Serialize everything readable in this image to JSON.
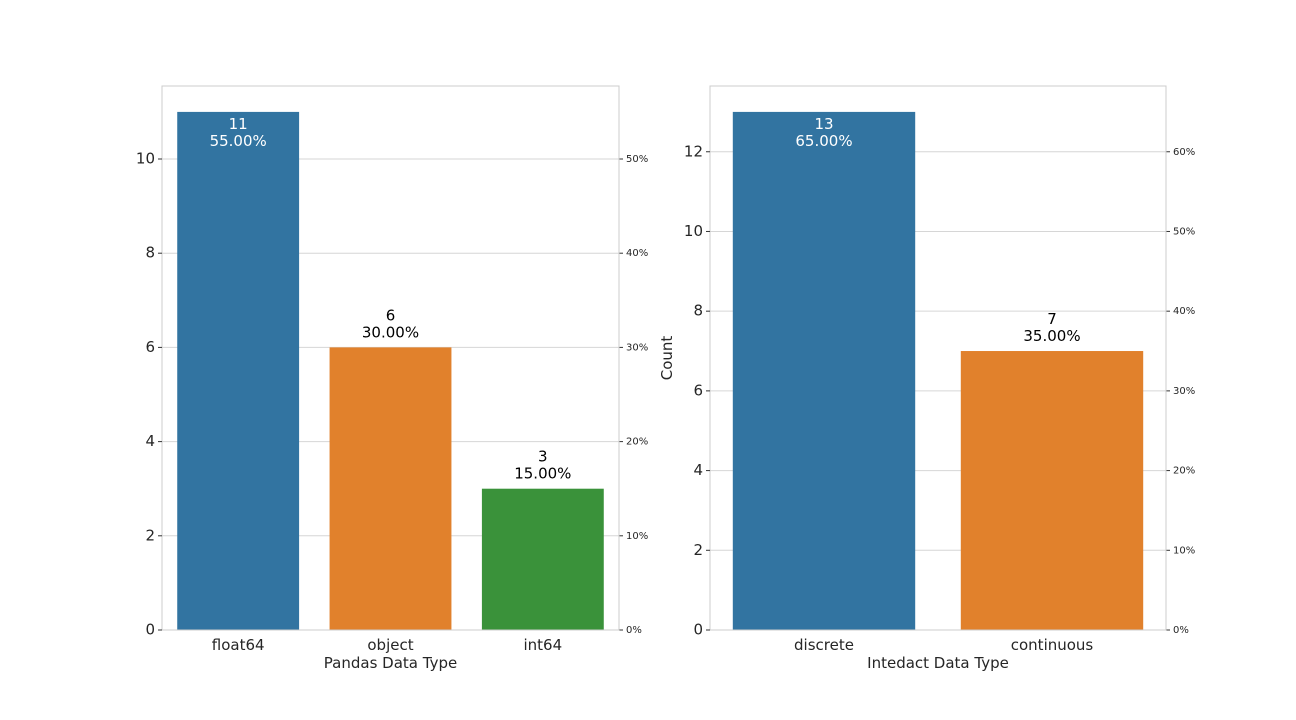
{
  "chart_data": [
    {
      "type": "bar",
      "title": "",
      "xlabel": "Pandas Data Type",
      "ylabel": "",
      "categories": [
        "float64",
        "object",
        "int64"
      ],
      "values": [
        11,
        6,
        3
      ],
      "percent_labels": [
        "55.00%",
        "30.00%",
        "15.00%"
      ],
      "value_labels": [
        "11",
        "6",
        "3"
      ],
      "colors": [
        "#3274a1",
        "#e1812c",
        "#3a923a"
      ],
      "ylim": [
        0,
        11.55
      ],
      "yticks": [
        0,
        2,
        4,
        6,
        8,
        10
      ],
      "ytick_labels": [
        "0",
        "2",
        "4",
        "6",
        "8",
        "10"
      ],
      "secondary_yticks": [
        0,
        10,
        20,
        30,
        40,
        50
      ],
      "secondary_ytick_labels": [
        "0%",
        "10%",
        "20%",
        "30%",
        "40%",
        "50%"
      ],
      "secondary_total": 20,
      "label_inside": [
        true,
        false,
        false
      ],
      "grid": true
    },
    {
      "type": "bar",
      "title": "",
      "xlabel": "Intedact Data Type",
      "ylabel": "Count",
      "categories": [
        "discrete",
        "continuous"
      ],
      "values": [
        13,
        7
      ],
      "percent_labels": [
        "65.00%",
        "35.00%"
      ],
      "value_labels": [
        "13",
        "7"
      ],
      "colors": [
        "#3274a1",
        "#e1812c"
      ],
      "ylim": [
        0,
        13.65
      ],
      "yticks": [
        0,
        2,
        4,
        6,
        8,
        10,
        12
      ],
      "ytick_labels": [
        "0",
        "2",
        "4",
        "6",
        "8",
        "10",
        "12"
      ],
      "secondary_yticks": [
        0,
        10,
        20,
        30,
        40,
        50,
        60
      ],
      "secondary_ytick_labels": [
        "0%",
        "10%",
        "20%",
        "30%",
        "40%",
        "50%",
        "60%"
      ],
      "secondary_total": 20,
      "label_inside": [
        true,
        false
      ],
      "grid": true
    }
  ]
}
